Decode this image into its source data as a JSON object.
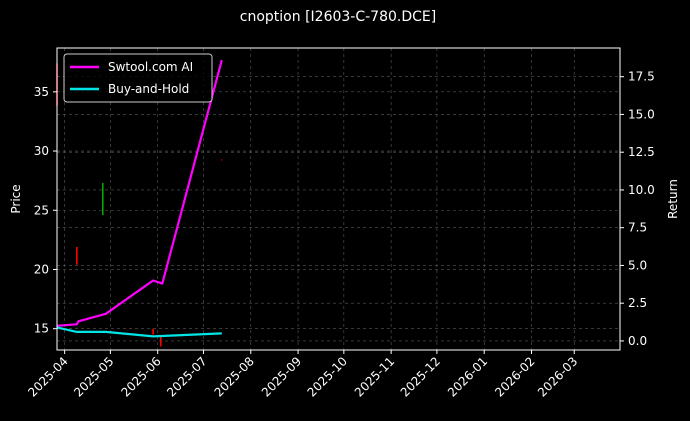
{
  "chart_data": {
    "type": "line",
    "title": "cnoption [I2603-C-780.DCE]",
    "ylabel_left": "Price",
    "ylabel_right": "Return",
    "xlim": [
      "2025-03-27",
      "2026-03-31"
    ],
    "ylim_left": [
      13.2,
      38.7
    ],
    "ylim_right": [
      -0.6,
      19.4
    ],
    "x_ticks": [
      "2025-04",
      "2025-05",
      "2025-06",
      "2025-07",
      "2025-08",
      "2025-09",
      "2025-10",
      "2025-11",
      "2025-12",
      "2026-01",
      "2026-02",
      "2026-03"
    ],
    "y_ticks_left": [
      15,
      20,
      25,
      30,
      35
    ],
    "y_ticks_right": [
      0.0,
      2.5,
      5.0,
      7.5,
      10.0,
      12.5,
      15.0,
      17.5
    ],
    "y_tick_labels_right": [
      "0.0",
      "2.5",
      "5.0",
      "7.5",
      "10.0",
      "12.5",
      "15.0",
      "17.5"
    ],
    "grid": true,
    "legend_position": "top-left",
    "series": [
      {
        "name": "Swtool.com AI",
        "axis": "right",
        "color": "#ff00ff",
        "x": [
          "2025-03-27",
          "2025-04-09",
          "2025-04-10",
          "2025-04-28",
          "2025-05-29",
          "2025-06-04",
          "2025-07-13"
        ],
        "y": [
          1.0,
          1.1,
          1.3,
          1.8,
          4.0,
          3.8,
          18.6
        ]
      },
      {
        "name": "Buy-and-Hold",
        "axis": "right",
        "color": "#00e5e5",
        "x": [
          "2025-03-27",
          "2025-04-09",
          "2025-04-28",
          "2025-05-29",
          "2025-07-13"
        ],
        "y": [
          0.9,
          0.6,
          0.6,
          0.3,
          0.5
        ]
      }
    ],
    "price_bars": [
      {
        "date": "2025-03-27",
        "low": 33.8,
        "high": 37.4,
        "color": "#ff0000"
      },
      {
        "date": "2025-04-09",
        "low": 20.4,
        "high": 21.9,
        "color": "#ff0000"
      },
      {
        "date": "2025-04-26",
        "low": 24.6,
        "high": 27.3,
        "color": "#00aa00"
      },
      {
        "date": "2025-05-29",
        "low": 14.5,
        "high": 15.0,
        "color": "#ff0000"
      },
      {
        "date": "2025-06-03",
        "low": 13.5,
        "high": 14.4,
        "color": "#ff0000"
      },
      {
        "date": "2025-07-13",
        "low": 29.2,
        "high": 29.3,
        "color": "#aa0000"
      }
    ]
  }
}
